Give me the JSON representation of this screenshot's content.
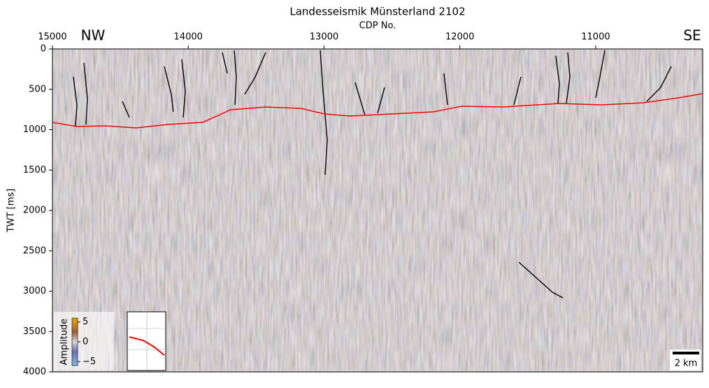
{
  "chart_data": {
    "type": "line",
    "title": "Landesseismik Münsterland 2102",
    "x_label": "CDP No.",
    "y_label": "TWT [ms]",
    "x": [
      15000,
      14820,
      14614,
      14382,
      14151,
      13893,
      13687,
      13430,
      13172,
      12997,
      12811,
      12503,
      12194,
      11988,
      11680,
      11268,
      10959,
      10650,
      10392,
      10212
    ],
    "values": [
      909,
      961,
      952,
      978,
      935,
      909,
      753,
      719,
      736,
      805,
      831,
      805,
      779,
      710,
      719,
      675,
      693,
      667,
      606,
      554
    ],
    "color": "#ff0000",
    "xlim": [
      15000,
      10212
    ],
    "xticks": [
      15000,
      14000,
      13000,
      12000,
      11000
    ],
    "ylim": [
      4000,
      0
    ],
    "yticks": [
      0,
      500,
      1000,
      1500,
      2000,
      2500,
      3000,
      3500,
      4000
    ],
    "annotations": {
      "left": "NW",
      "right": "SE",
      "scale": "2 km"
    },
    "colorbar": {
      "label": "Amplitude",
      "lim": [
        -6,
        6
      ],
      "ticks": [
        5,
        0,
        {
          "value": -5,
          "label": "−5"
        }
      ]
    }
  }
}
